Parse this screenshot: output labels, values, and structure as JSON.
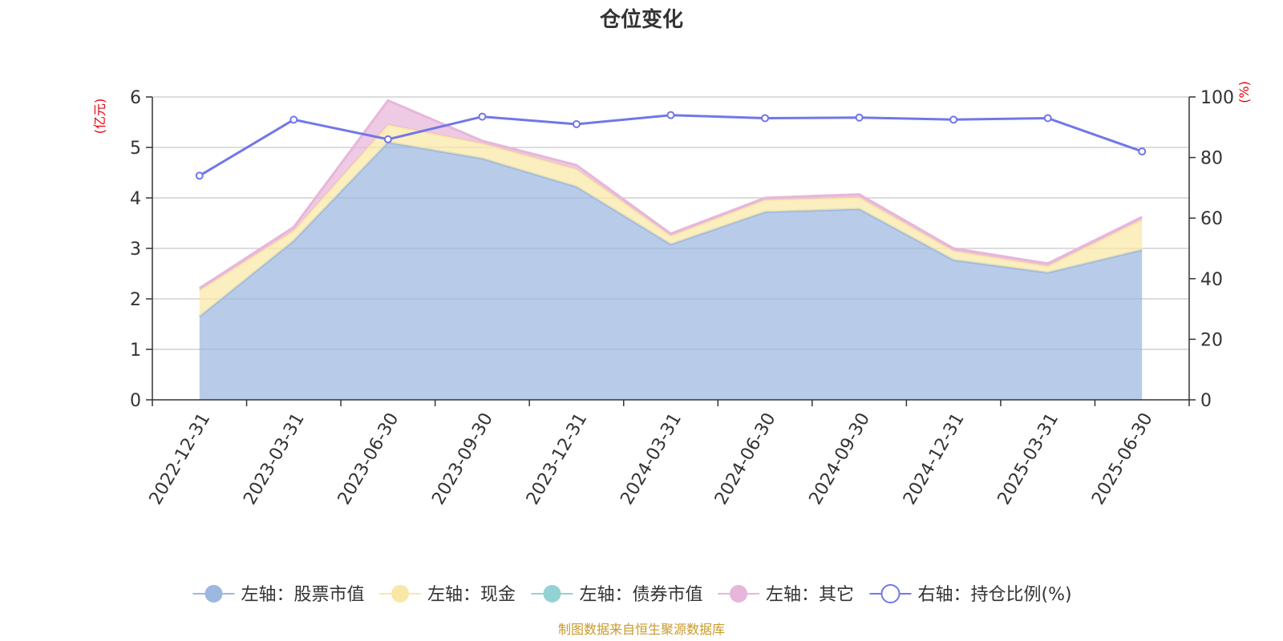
{
  "chart_data": {
    "type": "area",
    "title": "仓位变化",
    "categories": [
      "2022-12-31",
      "2023-03-31",
      "2023-06-30",
      "2023-09-30",
      "2023-12-31",
      "2024-03-31",
      "2024-06-30",
      "2024-09-30",
      "2024-12-31",
      "2025-03-31",
      "2025-06-30"
    ],
    "left_axis": {
      "unit": "(亿元)",
      "ylim": [
        0,
        6
      ],
      "ticks": [
        "0",
        "1",
        "2",
        "3",
        "4",
        "5",
        "6"
      ]
    },
    "right_axis": {
      "unit": "(%)",
      "ylim": [
        0,
        100
      ],
      "ticks": [
        "0",
        "20",
        "40",
        "60",
        "80",
        "100"
      ]
    },
    "stacked": true,
    "grid": true,
    "legend_position": "bottom",
    "series": [
      {
        "name": "左轴：股票市值",
        "axis": "left",
        "color": "#9cb8e0",
        "values": [
          1.65,
          3.15,
          5.1,
          4.78,
          4.22,
          3.08,
          3.72,
          3.78,
          2.77,
          2.52,
          2.97
        ]
      },
      {
        "name": "左轴：现金",
        "axis": "left",
        "color": "#f9e7a6",
        "values": [
          0.52,
          0.2,
          0.35,
          0.3,
          0.35,
          0.17,
          0.24,
          0.23,
          0.18,
          0.13,
          0.6
        ]
      },
      {
        "name": "左轴：债券市值",
        "axis": "left",
        "color": "#93d2d4",
        "values": [
          0,
          0,
          0,
          0,
          0,
          0,
          0,
          0,
          0,
          0,
          0
        ]
      },
      {
        "name": "左轴：其它",
        "axis": "left",
        "color": "#e7b6da",
        "values": [
          0.04,
          0.07,
          0.48,
          0.05,
          0.08,
          0.04,
          0.04,
          0.06,
          0.05,
          0.05,
          0.05
        ]
      },
      {
        "name": "右轴：持仓比例(%)",
        "axis": "right",
        "type": "line",
        "color": "#7177e8",
        "values": [
          74,
          92.5,
          86,
          93.5,
          91,
          94,
          93,
          93.2,
          92.5,
          93,
          82
        ]
      }
    ],
    "source": "制图数据来自恒生聚源数据库"
  }
}
